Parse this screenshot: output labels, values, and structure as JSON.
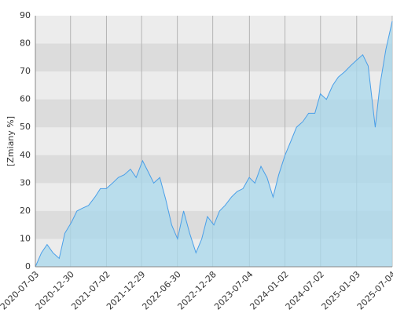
{
  "chart_data": {
    "type": "area",
    "y_label": "[Zmiany %]",
    "x": [
      "2020-07-03",
      "2020-08-03",
      "2020-09-01",
      "2020-10-01",
      "2020-11-02",
      "2020-12-01",
      "2021-01-04",
      "2021-02-01",
      "2021-03-01",
      "2021-04-01",
      "2021-05-04",
      "2021-06-01",
      "2021-07-01",
      "2021-08-02",
      "2021-09-01",
      "2021-10-01",
      "2021-11-02",
      "2021-12-01",
      "2022-01-03",
      "2022-02-01",
      "2022-03-01",
      "2022-04-01",
      "2022-05-02",
      "2022-06-01",
      "2022-07-01",
      "2022-08-01",
      "2022-09-01",
      "2022-10-03",
      "2022-11-02",
      "2022-12-01",
      "2023-01-03",
      "2023-02-01",
      "2023-03-01",
      "2023-04-03",
      "2023-05-02",
      "2023-06-01",
      "2023-07-03",
      "2023-08-01",
      "2023-09-01",
      "2023-10-02",
      "2023-11-02",
      "2023-12-01",
      "2024-01-02",
      "2024-02-01",
      "2024-03-01",
      "2024-04-02",
      "2024-05-02",
      "2024-06-03",
      "2024-07-01",
      "2024-08-01",
      "2024-09-02",
      "2024-10-01",
      "2024-11-04",
      "2024-12-02",
      "2025-01-02",
      "2025-02-03",
      "2025-03-03",
      "2025-04-08",
      "2025-05-02",
      "2025-06-02",
      "2025-07-04"
    ],
    "values": [
      0,
      5,
      8,
      5,
      3,
      12,
      16,
      20,
      21,
      22,
      25,
      28,
      28,
      30,
      32,
      33,
      35,
      32,
      38,
      34,
      30,
      32,
      24,
      15,
      10,
      20,
      12,
      5,
      10,
      18,
      15,
      20,
      22,
      25,
      27,
      28,
      32,
      30,
      36,
      32,
      25,
      33,
      40,
      45,
      50,
      52,
      55,
      55,
      62,
      60,
      65,
      68,
      70,
      72,
      74,
      76,
      72,
      50,
      65,
      78,
      88
    ],
    "color": "#4a9fe8",
    "fill": "#a8d8ec",
    "xlim": [
      "2020-07-03",
      "2025-07-04"
    ],
    "xticks": [
      "2020-07-03",
      "2020-12-30",
      "2021-07-02",
      "2021-12-29",
      "2022-06-30",
      "2022-12-28",
      "2023-07-04",
      "2024-01-02",
      "2024-07-02",
      "2025-01-03",
      "2025-07-04"
    ],
    "ylim": [
      0,
      90
    ],
    "yticks": [
      0,
      10,
      20,
      30,
      40,
      50,
      60,
      70,
      80,
      90
    ],
    "grid": true
  }
}
